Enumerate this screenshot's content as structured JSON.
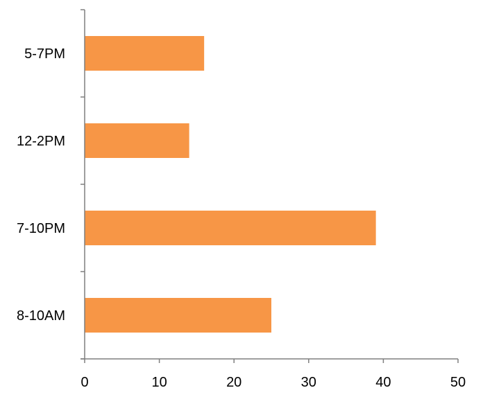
{
  "chart_data": {
    "type": "bar",
    "orientation": "horizontal",
    "categories": [
      "5-7PM",
      "12-2PM",
      "7-10PM",
      "8-10AM"
    ],
    "values": [
      16,
      14,
      39,
      25
    ],
    "title": "",
    "xlabel": "",
    "ylabel": "",
    "xlim": [
      0,
      50
    ],
    "x_ticks": [
      "0",
      "10",
      "20",
      "30",
      "40",
      "50"
    ],
    "grid": false,
    "legend": "none",
    "bar_color": "#F79646",
    "axis_color": "#7F7F7F"
  }
}
